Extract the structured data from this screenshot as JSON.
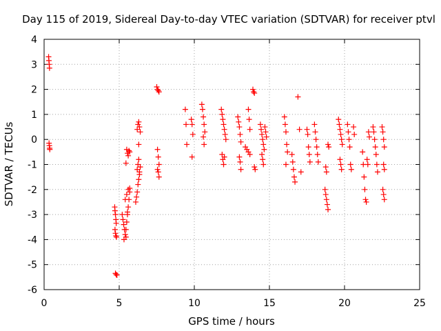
{
  "chart_data": {
    "type": "scatter",
    "title": "Day 115 of 2019, Sidereal Day-to-day VTEC variation (SDTVAR) for receiver ptvl",
    "xlabel": "GPS time / hours",
    "ylabel": "SDTVAR / TECUs",
    "xlim": [
      0,
      25
    ],
    "ylim": [
      -6,
      4
    ],
    "xticks": [
      0,
      5,
      10,
      15,
      20,
      25
    ],
    "yticks": [
      -6,
      -5,
      -4,
      -3,
      -2,
      -1,
      0,
      1,
      2,
      3,
      4
    ],
    "grid": true,
    "marker": "+",
    "color": "#ff0000",
    "series": [
      {
        "name": "SDTVAR",
        "points": [
          [
            0.3,
            3.3
          ],
          [
            0.32,
            3.15
          ],
          [
            0.34,
            3.0
          ],
          [
            0.36,
            2.85
          ],
          [
            0.33,
            -0.15
          ],
          [
            0.35,
            -0.25
          ],
          [
            0.37,
            -0.35
          ],
          [
            0.38,
            -0.4
          ],
          [
            4.7,
            -2.7
          ],
          [
            4.72,
            -2.85
          ],
          [
            4.75,
            -3.0
          ],
          [
            4.78,
            -3.2
          ],
          [
            4.8,
            -3.35
          ],
          [
            4.72,
            -3.6
          ],
          [
            4.75,
            -3.75
          ],
          [
            4.78,
            -3.85
          ],
          [
            4.82,
            -3.9
          ],
          [
            4.75,
            -5.35
          ],
          [
            4.8,
            -5.4
          ],
          [
            4.85,
            -5.42
          ],
          [
            5.2,
            -3.0
          ],
          [
            5.25,
            -3.2
          ],
          [
            5.3,
            -3.4
          ],
          [
            5.35,
            -3.6
          ],
          [
            5.4,
            -3.8
          ],
          [
            5.32,
            -4.0
          ],
          [
            5.45,
            -3.6
          ],
          [
            5.5,
            -3.3
          ],
          [
            5.55,
            -3.0
          ],
          [
            5.6,
            -2.7
          ],
          [
            5.65,
            -2.4
          ],
          [
            5.7,
            -2.1
          ],
          [
            5.4,
            -2.4
          ],
          [
            5.5,
            -2.2
          ],
          [
            5.6,
            -2.0
          ],
          [
            5.7,
            -1.95
          ],
          [
            5.55,
            -2.9
          ],
          [
            5.45,
            -3.9
          ],
          [
            5.5,
            -0.4
          ],
          [
            5.55,
            -0.55
          ],
          [
            5.6,
            -0.65
          ],
          [
            5.65,
            -0.45
          ],
          [
            5.7,
            -0.5
          ],
          [
            5.45,
            -0.95
          ],
          [
            6.1,
            -2.5
          ],
          [
            6.15,
            -2.3
          ],
          [
            6.2,
            -2.1
          ],
          [
            6.25,
            -1.8
          ],
          [
            6.3,
            -1.6
          ],
          [
            6.35,
            -1.4
          ],
          [
            6.2,
            -1.2
          ],
          [
            6.25,
            -1.0
          ],
          [
            6.3,
            -0.8
          ],
          [
            6.35,
            -1.3
          ],
          [
            6.4,
            -1.1
          ],
          [
            6.2,
            0.4
          ],
          [
            6.25,
            0.6
          ],
          [
            6.3,
            0.7
          ],
          [
            6.35,
            0.5
          ],
          [
            6.4,
            0.3
          ],
          [
            6.3,
            -0.2
          ],
          [
            7.5,
            2.1
          ],
          [
            7.55,
            2.0
          ],
          [
            7.6,
            1.95
          ],
          [
            7.65,
            1.9
          ],
          [
            7.55,
            -0.4
          ],
          [
            7.6,
            -0.7
          ],
          [
            7.65,
            -1.0
          ],
          [
            7.6,
            -1.3
          ],
          [
            7.65,
            -1.5
          ],
          [
            7.55,
            -1.2
          ],
          [
            9.4,
            1.2
          ],
          [
            9.45,
            0.6
          ],
          [
            9.5,
            -0.2
          ],
          [
            9.8,
            0.8
          ],
          [
            9.85,
            0.6
          ],
          [
            9.9,
            0.2
          ],
          [
            9.85,
            -0.7
          ],
          [
            10.5,
            1.4
          ],
          [
            10.55,
            1.2
          ],
          [
            10.6,
            0.9
          ],
          [
            10.65,
            0.6
          ],
          [
            10.7,
            0.3
          ],
          [
            10.6,
            0.1
          ],
          [
            10.65,
            -0.2
          ],
          [
            11.8,
            1.2
          ],
          [
            11.85,
            1.0
          ],
          [
            11.9,
            0.8
          ],
          [
            11.95,
            0.6
          ],
          [
            12.0,
            0.4
          ],
          [
            12.05,
            0.2
          ],
          [
            12.1,
            0.0
          ],
          [
            11.85,
            -0.6
          ],
          [
            11.9,
            -0.8
          ],
          [
            11.95,
            -1.0
          ],
          [
            12.0,
            -0.7
          ],
          [
            12.9,
            0.9
          ],
          [
            12.95,
            0.7
          ],
          [
            13.0,
            0.5
          ],
          [
            13.05,
            0.2
          ],
          [
            13.1,
            -0.1
          ],
          [
            13.0,
            -0.7
          ],
          [
            13.05,
            -0.9
          ],
          [
            13.1,
            -1.2
          ],
          [
            13.4,
            -0.3
          ],
          [
            13.5,
            -0.4
          ],
          [
            13.6,
            -0.5
          ],
          [
            13.7,
            -0.6
          ],
          [
            13.6,
            1.2
          ],
          [
            13.65,
            0.8
          ],
          [
            13.7,
            0.4
          ],
          [
            13.9,
            2.0
          ],
          [
            13.95,
            1.9
          ],
          [
            14.0,
            1.85
          ],
          [
            14.0,
            -1.1
          ],
          [
            14.05,
            -1.2
          ],
          [
            14.4,
            0.6
          ],
          [
            14.45,
            0.4
          ],
          [
            14.5,
            0.2
          ],
          [
            14.55,
            0.0
          ],
          [
            14.6,
            -0.2
          ],
          [
            14.65,
            -0.4
          ],
          [
            14.5,
            -0.6
          ],
          [
            14.55,
            -0.8
          ],
          [
            14.6,
            -1.0
          ],
          [
            14.7,
            0.5
          ],
          [
            14.75,
            0.3
          ],
          [
            14.8,
            0.1
          ],
          [
            16.0,
            0.9
          ],
          [
            16.05,
            0.6
          ],
          [
            16.1,
            0.3
          ],
          [
            16.15,
            -0.2
          ],
          [
            16.2,
            -0.5
          ],
          [
            16.1,
            -1.0
          ],
          [
            16.5,
            -0.6
          ],
          [
            16.55,
            -0.9
          ],
          [
            16.6,
            -1.2
          ],
          [
            16.65,
            -1.5
          ],
          [
            16.7,
            -1.7
          ],
          [
            16.9,
            1.7
          ],
          [
            17.0,
            0.4
          ],
          [
            17.1,
            -1.3
          ],
          [
            17.5,
            0.4
          ],
          [
            17.55,
            0.2
          ],
          [
            17.6,
            -0.3
          ],
          [
            17.65,
            -0.6
          ],
          [
            17.7,
            -0.9
          ],
          [
            18.0,
            0.6
          ],
          [
            18.05,
            0.3
          ],
          [
            18.1,
            0.0
          ],
          [
            18.15,
            -0.3
          ],
          [
            18.2,
            -0.6
          ],
          [
            18.25,
            -0.9
          ],
          [
            18.7,
            -2.0
          ],
          [
            18.75,
            -2.2
          ],
          [
            18.8,
            -2.4
          ],
          [
            18.85,
            -2.6
          ],
          [
            18.9,
            -2.8
          ],
          [
            18.75,
            -1.1
          ],
          [
            18.8,
            -1.3
          ],
          [
            18.9,
            -0.2
          ],
          [
            18.95,
            -0.3
          ],
          [
            19.6,
            0.8
          ],
          [
            19.65,
            0.6
          ],
          [
            19.7,
            0.4
          ],
          [
            19.75,
            0.2
          ],
          [
            19.8,
            0.0
          ],
          [
            19.85,
            -0.2
          ],
          [
            19.7,
            -0.8
          ],
          [
            19.75,
            -1.0
          ],
          [
            19.8,
            -1.2
          ],
          [
            20.2,
            0.6
          ],
          [
            20.25,
            0.3
          ],
          [
            20.3,
            0.0
          ],
          [
            20.35,
            -0.3
          ],
          [
            20.4,
            -1.0
          ],
          [
            20.45,
            -1.2
          ],
          [
            20.6,
            0.5
          ],
          [
            20.65,
            0.2
          ],
          [
            21.2,
            -0.5
          ],
          [
            21.25,
            -1.0
          ],
          [
            21.3,
            -1.5
          ],
          [
            21.35,
            -2.0
          ],
          [
            21.4,
            -2.4
          ],
          [
            21.45,
            -2.5
          ],
          [
            21.5,
            -0.8
          ],
          [
            21.55,
            -1.0
          ],
          [
            21.6,
            0.3
          ],
          [
            21.65,
            0.1
          ],
          [
            21.9,
            0.5
          ],
          [
            21.95,
            0.3
          ],
          [
            22.0,
            0.0
          ],
          [
            22.05,
            -0.3
          ],
          [
            22.1,
            -0.6
          ],
          [
            22.15,
            -1.0
          ],
          [
            22.2,
            -1.3
          ],
          [
            22.5,
            0.5
          ],
          [
            22.55,
            0.3
          ],
          [
            22.6,
            0.0
          ],
          [
            22.65,
            -0.3
          ],
          [
            22.6,
            -1.0
          ],
          [
            22.65,
            -1.2
          ],
          [
            22.55,
            -2.0
          ],
          [
            22.6,
            -2.2
          ],
          [
            22.65,
            -2.4
          ]
        ]
      }
    ]
  }
}
